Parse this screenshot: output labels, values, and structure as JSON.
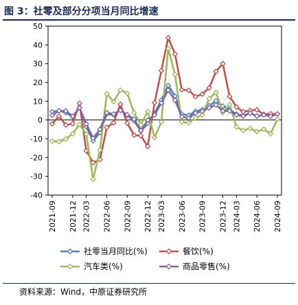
{
  "figure": {
    "title": "图 3：社零及部分分项当月同比增速",
    "source": "资料来源：Wind，中原证券研究所"
  },
  "chart_data": {
    "type": "line",
    "title": "",
    "xlabel": "",
    "ylabel": "",
    "ylim": [
      -40,
      50
    ],
    "yticks": [
      -40,
      -30,
      -20,
      -10,
      0,
      10,
      20,
      30,
      40,
      50
    ],
    "grid": false,
    "legend_position": "bottom",
    "x": [
      "2021-09",
      "2021-10",
      "2021-11",
      "2021-12",
      "2022-01",
      "2022-03",
      "2022-04",
      "2022-05",
      "2022-06",
      "2022-07",
      "2022-08",
      "2022-09",
      "2022-10",
      "2022-11",
      "2022-12",
      "2023-01",
      "2023-03",
      "2023-04",
      "2023-05",
      "2023-06",
      "2023-07",
      "2023-08",
      "2023-09",
      "2023-10",
      "2023-11",
      "2023-12",
      "2024-01",
      "2024-03",
      "2024-04",
      "2024-05",
      "2024-06",
      "2024-07",
      "2024-08",
      "2024-09"
    ],
    "xtick_labels": [
      "2021-09",
      "2021-12",
      "2022-03",
      "2022-06",
      "2022-09",
      "2022-12",
      "2023-03",
      "2023-06",
      "2023-09",
      "2023-12",
      "2024-03",
      "2024-06",
      "2024-09"
    ],
    "series": [
      {
        "name": "社零当月同比(%)",
        "color": "#4a7ebb",
        "values": [
          4.4,
          4.9,
          3.9,
          1.7,
          6.7,
          -3.5,
          -11.1,
          -6.7,
          3.1,
          2.7,
          5.4,
          2.5,
          -0.5,
          -5.9,
          -1.8,
          3.5,
          10.6,
          18.4,
          12.7,
          3.1,
          2.5,
          4.6,
          5.5,
          7.6,
          10.1,
          7.4,
          5.5,
          3.1,
          2.3,
          3.7,
          2.0,
          2.7,
          2.1,
          3.2
        ]
      },
      {
        "name": "餐饮(%)",
        "color": "#c0504d",
        "values": [
          -2.1,
          2.0,
          -2.7,
          -2.0,
          8.9,
          -16.4,
          -22.7,
          -21.1,
          -4.0,
          -1.5,
          8.4,
          -1.7,
          -8.1,
          -8.4,
          -14.1,
          9.2,
          26.3,
          43.8,
          35.1,
          16.1,
          15.8,
          12.4,
          13.8,
          17.1,
          25.8,
          30.0,
          12.5,
          6.9,
          4.4,
          5.0,
          5.4,
          3.0,
          3.3,
          3.1
        ]
      },
      {
        "name": "汽车类(%)",
        "color": "#9bbb59",
        "values": [
          -11.3,
          -11.5,
          -10.1,
          -7.4,
          -2.4,
          -7.5,
          -31.6,
          -16.0,
          13.9,
          9.7,
          15.9,
          14.2,
          3.9,
          -2.6,
          4.6,
          -9.4,
          -1.0,
          38.0,
          24.2,
          -1.1,
          -1.5,
          1.1,
          2.8,
          11.4,
          14.7,
          4.0,
          8.2,
          -3.7,
          -5.6,
          -4.4,
          -6.2,
          -4.9,
          -7.3,
          0.4
        ]
      },
      {
        "name": "商品零售(%)",
        "color": "#8064a2",
        "values": [
          2.5,
          4.9,
          4.8,
          2.0,
          6.5,
          -2.1,
          -9.7,
          -5.0,
          3.9,
          3.2,
          5.1,
          2.8,
          0.5,
          -5.6,
          -0.1,
          2.7,
          9.1,
          15.9,
          10.5,
          1.7,
          1.0,
          3.7,
          4.6,
          6.5,
          8.0,
          4.8,
          4.8,
          2.7,
          2.0,
          3.6,
          2.1,
          2.7,
          2.0,
          3.2
        ]
      }
    ]
  }
}
